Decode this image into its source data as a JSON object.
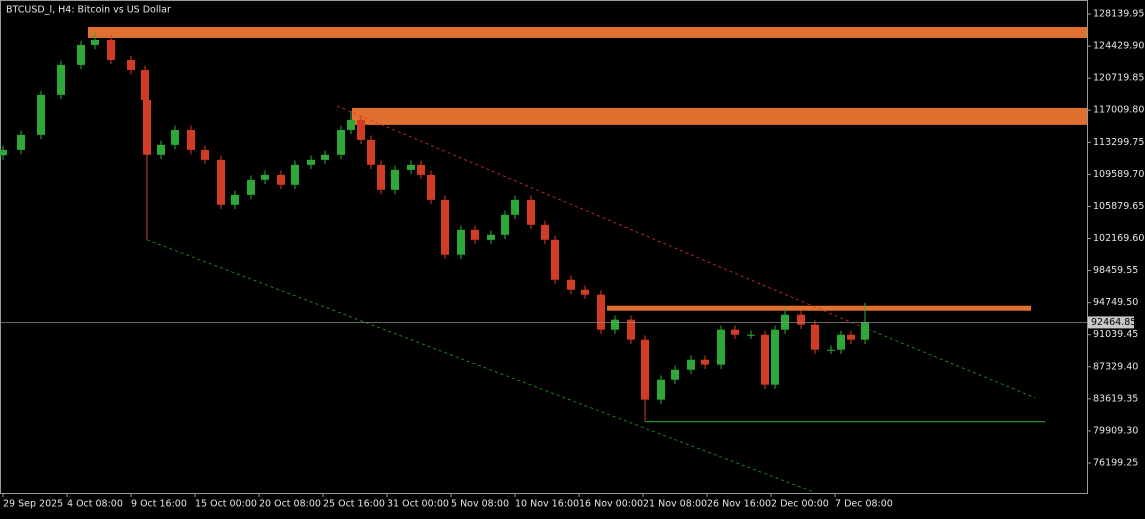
{
  "chart_data": {
    "type": "candlestick",
    "title": "BTCUSD_l, H4:  Bitcoin vs US Dollar",
    "up_color": "#2fa83a",
    "down_color": "#d23b26",
    "x": [
      0,
      9,
      19,
      29,
      39,
      46,
      54,
      64,
      71,
      72,
      79,
      86,
      94,
      101,
      109,
      116,
      124,
      131,
      139,
      146,
      154,
      161,
      169,
      174,
      179,
      184,
      189,
      196,
      204,
      209,
      214,
      221,
      229,
      236,
      244,
      251,
      256,
      264,
      271,
      276,
      284,
      291,
      299,
      306,
      314,
      321,
      329,
      336,
      344,
      351,
      359,
      366,
      374,
      381,
      386,
      391,
      399,
      406,
      414,
      419,
      424,
      431
    ],
    "open": [
      111800,
      112420,
      114160,
      118780,
      122250,
      124560,
      125140,
      122820,
      121670,
      118200,
      111850,
      113000,
      114730,
      112420,
      111270,
      106070,
      107220,
      108960,
      109530,
      108380,
      110690,
      111270,
      111850,
      114730,
      115890,
      113580,
      110690,
      107800,
      110110,
      110690,
      109530,
      106640,
      100290,
      103180,
      102020,
      102600,
      104910,
      106640,
      103750,
      102020,
      97400,
      96240,
      95670,
      91620,
      92780,
      90470,
      83530,
      85840,
      86990,
      88150,
      87580,
      91620,
      91040,
      91040,
      85260,
      91620,
      93350,
      92200,
      89310,
      89310,
      91040,
      90470
    ],
    "high": [
      112920,
      114660,
      119280,
      122750,
      125060,
      126100,
      125640,
      123320,
      122170,
      118700,
      113500,
      115230,
      115230,
      112920,
      111770,
      107720,
      109460,
      110030,
      110030,
      111190,
      111770,
      112350,
      115230,
      116900,
      116390,
      114080,
      111190,
      110610,
      111190,
      111190,
      110030,
      107140,
      103680,
      103680,
      103100,
      105410,
      107140,
      107140,
      104250,
      102520,
      97900,
      96740,
      96170,
      93280,
      93280,
      90970,
      86340,
      87490,
      88650,
      88650,
      92120,
      92120,
      91540,
      91540,
      92120,
      94150,
      93850,
      92700,
      89810,
      91540,
      91540,
      94740
    ],
    "low": [
      111300,
      111920,
      113660,
      118280,
      121750,
      124060,
      122320,
      121170,
      117700,
      102020,
      111350,
      112500,
      111920,
      110770,
      105570,
      105570,
      106720,
      108460,
      107880,
      107880,
      110190,
      110770,
      111350,
      114230,
      113080,
      110190,
      107300,
      107300,
      109610,
      109030,
      106140,
      99790,
      99790,
      101520,
      101520,
      102100,
      104410,
      103250,
      101520,
      96900,
      95740,
      95170,
      91120,
      91120,
      89970,
      80990,
      83030,
      85340,
      86490,
      87080,
      87080,
      90540,
      90540,
      84760,
      84760,
      91120,
      91700,
      88810,
      88810,
      88810,
      89970,
      89970
    ],
    "close": [
      112420,
      114160,
      118780,
      122250,
      124560,
      125140,
      122820,
      121670,
      118200,
      111850,
      113000,
      114730,
      112420,
      111270,
      106070,
      107220,
      108960,
      109530,
      108380,
      110690,
      111270,
      111850,
      114730,
      115890,
      113580,
      110690,
      107800,
      110110,
      110690,
      109530,
      106640,
      100290,
      103180,
      102020,
      102600,
      104910,
      106640,
      103750,
      102020,
      97400,
      96240,
      95670,
      91620,
      92780,
      90470,
      83530,
      85840,
      86990,
      88150,
      87580,
      91620,
      91040,
      91040,
      85260,
      91620,
      93350,
      92200,
      89310,
      89310,
      91040,
      90470,
      92460
    ],
    "last_price": 92464.85,
    "xlim": [
      -1.5,
      542
    ],
    "ylim": [
      72732,
      129758
    ],
    "xticks": [
      {
        "value": 0,
        "label": "29 Sep 2025"
      },
      {
        "value": 32,
        "label": "4 Oct 08:00"
      },
      {
        "value": 64,
        "label": "9 Oct 16:00"
      },
      {
        "value": 96,
        "label": "15 Oct 00:00"
      },
      {
        "value": 128,
        "label": "20 Oct 08:00"
      },
      {
        "value": 160,
        "label": "25 Oct 16:00"
      },
      {
        "value": 192,
        "label": "31 Oct 00:00"
      },
      {
        "value": 224,
        "label": "5 Nov 08:00"
      },
      {
        "value": 256,
        "label": "10 Nov 16:00"
      },
      {
        "value": 288,
        "label": "16 Nov 00:00"
      },
      {
        "value": 320,
        "label": "21 Nov 08:00"
      },
      {
        "value": 352,
        "label": "26 Nov 16:00"
      },
      {
        "value": 384,
        "label": "2 Dec 00:00"
      },
      {
        "value": 416,
        "label": "7 Dec 08:00"
      }
    ],
    "yticks": [
      128139.95,
      {
        "value": 124429.9,
        "label": "124429.90"
      },
      120719.85,
      {
        "value": 117009.8,
        "label": "117009.80"
      },
      113299.75,
      {
        "value": 109589.7,
        "label": "109589.70"
      },
      105879.65,
      {
        "value": 102169.6,
        "label": "102169.60"
      },
      98459.55,
      {
        "value": 94749.5,
        "label": "94749.50"
      },
      91039.45,
      {
        "value": 87329.4,
        "label": "87329.40"
      },
      83619.35,
      {
        "value": 79909.3,
        "label": "79909.30"
      },
      76199.25
    ],
    "zones": [
      {
        "from": 42.5,
        "to": 542,
        "low": 125367,
        "high": 126638,
        "color": "#e07030"
      },
      {
        "from": 174.5,
        "to": 542,
        "low": 115312,
        "high": 117276,
        "color": "#e07030"
      },
      {
        "from": 302,
        "to": 514,
        "low": 93816,
        "high": 94394,
        "color": "#e07030"
      }
    ],
    "lines": [
      {
        "x": [
          321,
          521
        ],
        "y": [
          80987,
          80987
        ],
        "color": "#1f9a1f",
        "dashed": false
      },
      {
        "x": [
          167,
          429.5
        ],
        "y": [
          117507,
          91967
        ],
        "color": "#e03030",
        "dashed": true
      },
      {
        "x": [
          429.5,
          516
        ],
        "y": [
          91967,
          83762
        ],
        "color": "#22a022",
        "dashed": true
      },
      {
        "x": [
          72,
          406
        ],
        "y": [
          102021,
          72784
        ],
        "color": "#22a022",
        "dashed": true
      }
    ]
  }
}
